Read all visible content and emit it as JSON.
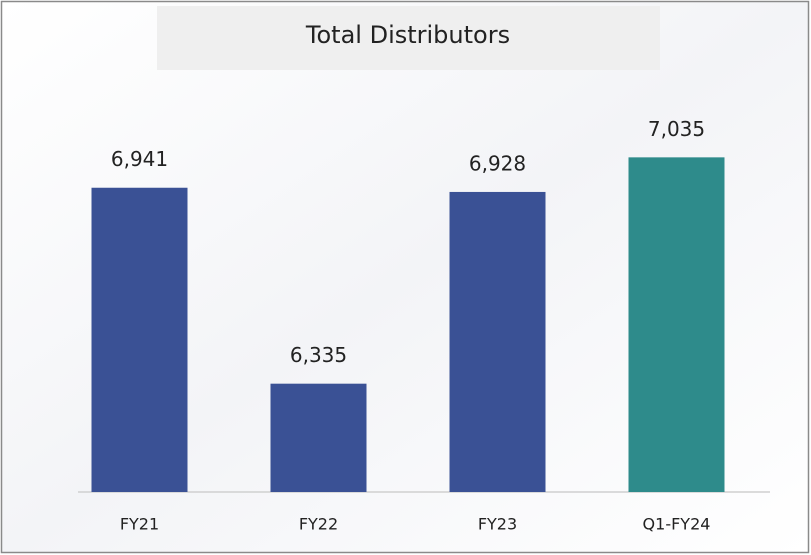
{
  "chart_data": {
    "type": "bar",
    "title": "Total Distributors",
    "categories": [
      "FY21",
      "FY22",
      "FY23",
      "Q1-FY24"
    ],
    "values": [
      6941,
      6335,
      6928,
      7035
    ],
    "value_labels": [
      "6,941",
      "6,335",
      "6,928",
      "7,035"
    ],
    "colors": [
      "#3a5195",
      "#3a5195",
      "#3a5195",
      "#2e8b8b"
    ],
    "ylim": [
      6000,
      7200
    ]
  }
}
